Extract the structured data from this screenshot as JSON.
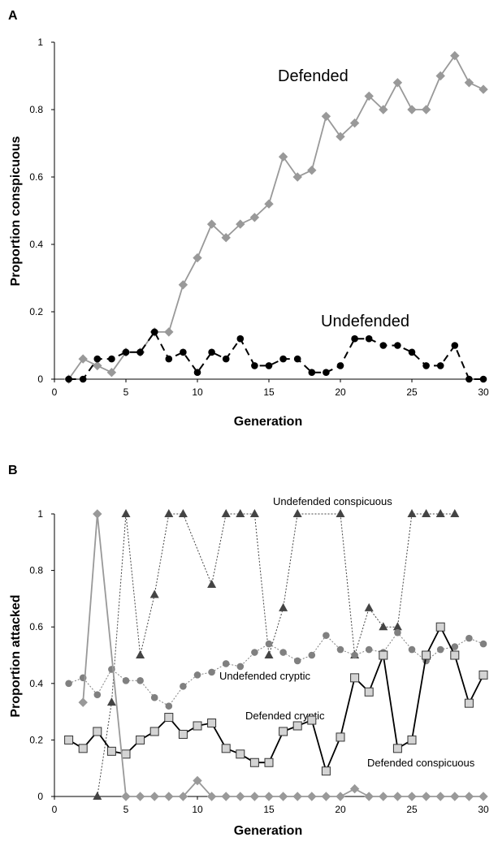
{
  "chart_data": [
    {
      "panel": "A",
      "type": "line",
      "xlabel": "Generation",
      "ylabel": "Proportion conspicuous",
      "xlim": [
        0,
        30
      ],
      "ylim": [
        0,
        1
      ],
      "x_ticks": [
        "0",
        "5",
        "10",
        "15",
        "20",
        "25",
        "30"
      ],
      "y_ticks": [
        "0",
        "0.2",
        "0.4",
        "0.6",
        "0.8",
        "1"
      ],
      "grid": false,
      "x": [
        1,
        2,
        3,
        4,
        5,
        6,
        7,
        8,
        9,
        10,
        11,
        12,
        13,
        14,
        15,
        16,
        17,
        18,
        19,
        20,
        21,
        22,
        23,
        24,
        25,
        26,
        27,
        28,
        29,
        30
      ],
      "series": [
        {
          "name": "Defended",
          "color": "#999999",
          "marker": "diamond",
          "line": "solid",
          "values": [
            0,
            0.06,
            0.04,
            0.02,
            0.08,
            0.08,
            0.14,
            0.14,
            0.28,
            0.36,
            0.46,
            0.42,
            0.46,
            0.48,
            0.52,
            0.66,
            0.6,
            0.62,
            0.78,
            0.72,
            0.76,
            0.84,
            0.8,
            0.88,
            0.8,
            0.8,
            0.9,
            0.96,
            0.88,
            0.86
          ]
        },
        {
          "name": "Undefended",
          "color": "#000000",
          "marker": "circle",
          "line": "dashed",
          "values": [
            0,
            0,
            0.06,
            0.06,
            0.08,
            0.08,
            0.14,
            0.06,
            0.08,
            0.02,
            0.08,
            0.06,
            0.12,
            0.04,
            0.04,
            0.06,
            0.06,
            0.02,
            0.02,
            0.04,
            0.12,
            0.12,
            0.1,
            0.1,
            0.08,
            0.04,
            0.04,
            0.1,
            0,
            0
          ]
        }
      ],
      "annotations": [
        "Defended",
        "Undefended"
      ]
    },
    {
      "panel": "B",
      "type": "line",
      "xlabel": "Generation",
      "ylabel": "Proportion attacked",
      "xlim": [
        0,
        30
      ],
      "ylim": [
        0,
        1
      ],
      "x_ticks": [
        "0",
        "5",
        "10",
        "15",
        "20",
        "25",
        "30"
      ],
      "y_ticks": [
        "0",
        "0.2",
        "0.4",
        "0.6",
        "0.8",
        "1"
      ],
      "grid": false,
      "series": [
        {
          "name": "Undefended conspicuous",
          "color": "#444444",
          "marker": "triangle",
          "line": "dotted",
          "x": [
            3,
            4,
            5,
            6,
            7,
            8,
            9,
            11,
            12,
            13,
            14,
            15,
            16,
            17,
            20,
            21,
            22,
            23,
            24,
            25,
            26,
            27,
            28
          ],
          "values": [
            0,
            0.333,
            1,
            0.5,
            0.714,
            1,
            1,
            0.75,
            1,
            1,
            1,
            0.5,
            0.667,
            1,
            1,
            0.5,
            0.667,
            0.6,
            0.6,
            1,
            1,
            1,
            1
          ]
        },
        {
          "name": "Undefended cryptic",
          "color": "#808080",
          "marker": "circle",
          "line": "dotted",
          "x": [
            1,
            2,
            3,
            4,
            5,
            6,
            7,
            8,
            9,
            10,
            11,
            12,
            13,
            14,
            15,
            16,
            17,
            18,
            19,
            20,
            21,
            22,
            23,
            24,
            25,
            26,
            27,
            28,
            29,
            30
          ],
          "values": [
            0.4,
            0.42,
            0.36,
            0.45,
            0.41,
            0.41,
            0.35,
            0.32,
            0.39,
            0.43,
            0.44,
            0.47,
            0.46,
            0.51,
            0.54,
            0.51,
            0.48,
            0.5,
            0.57,
            0.52,
            0.5,
            0.52,
            0.51,
            0.58,
            0.52,
            0.48,
            0.52,
            0.53,
            0.56,
            0.54
          ]
        },
        {
          "name": "Defended cryptic",
          "color": "#000000",
          "marker": "square",
          "line": "solid",
          "x": [
            1,
            2,
            3,
            4,
            5,
            6,
            7,
            8,
            9,
            10,
            11,
            12,
            13,
            14,
            15,
            16,
            17,
            18,
            19,
            20,
            21,
            22,
            23,
            24,
            25,
            26,
            27,
            28,
            29,
            30
          ],
          "values": [
            0.2,
            0.17,
            0.23,
            0.16,
            0.15,
            0.2,
            0.23,
            0.28,
            0.22,
            0.25,
            0.26,
            0.17,
            0.15,
            0.12,
            0.12,
            0.23,
            0.25,
            0.27,
            0.09,
            0.21,
            0.42,
            0.37,
            0.5,
            0.17,
            0.2,
            0.5,
            0.6,
            0.5,
            0.33,
            0.43
          ]
        },
        {
          "name": "Defended conspicuous",
          "color": "#999999",
          "marker": "diamond",
          "line": "solid",
          "x": [
            2,
            3,
            5,
            6,
            7,
            8,
            9,
            10,
            11,
            12,
            13,
            14,
            15,
            16,
            17,
            18,
            19,
            20,
            21,
            22,
            23,
            24,
            25,
            26,
            27,
            28,
            29,
            30
          ],
          "values": [
            0.333,
            1,
            0,
            0,
            0,
            0,
            0,
            0.056,
            0,
            0,
            0,
            0,
            0,
            0,
            0,
            0,
            0,
            0,
            0.027,
            0,
            0,
            0,
            0,
            0,
            0,
            0,
            0,
            0
          ]
        }
      ],
      "annotations": [
        "Undefended conspicuous",
        "Undefended cryptic",
        "Defended cryptic",
        "Defended conspicuous"
      ]
    }
  ],
  "labels": {
    "panel_a": "A",
    "panel_b": "B",
    "a_defended": "Defended",
    "a_undefended": "Undefended",
    "b_und_consp": "Undefended conspicuous",
    "b_und_cryptic": "Undefended cryptic",
    "b_def_cryptic": "Defended cryptic",
    "b_def_consp": "Defended conspicuous"
  }
}
